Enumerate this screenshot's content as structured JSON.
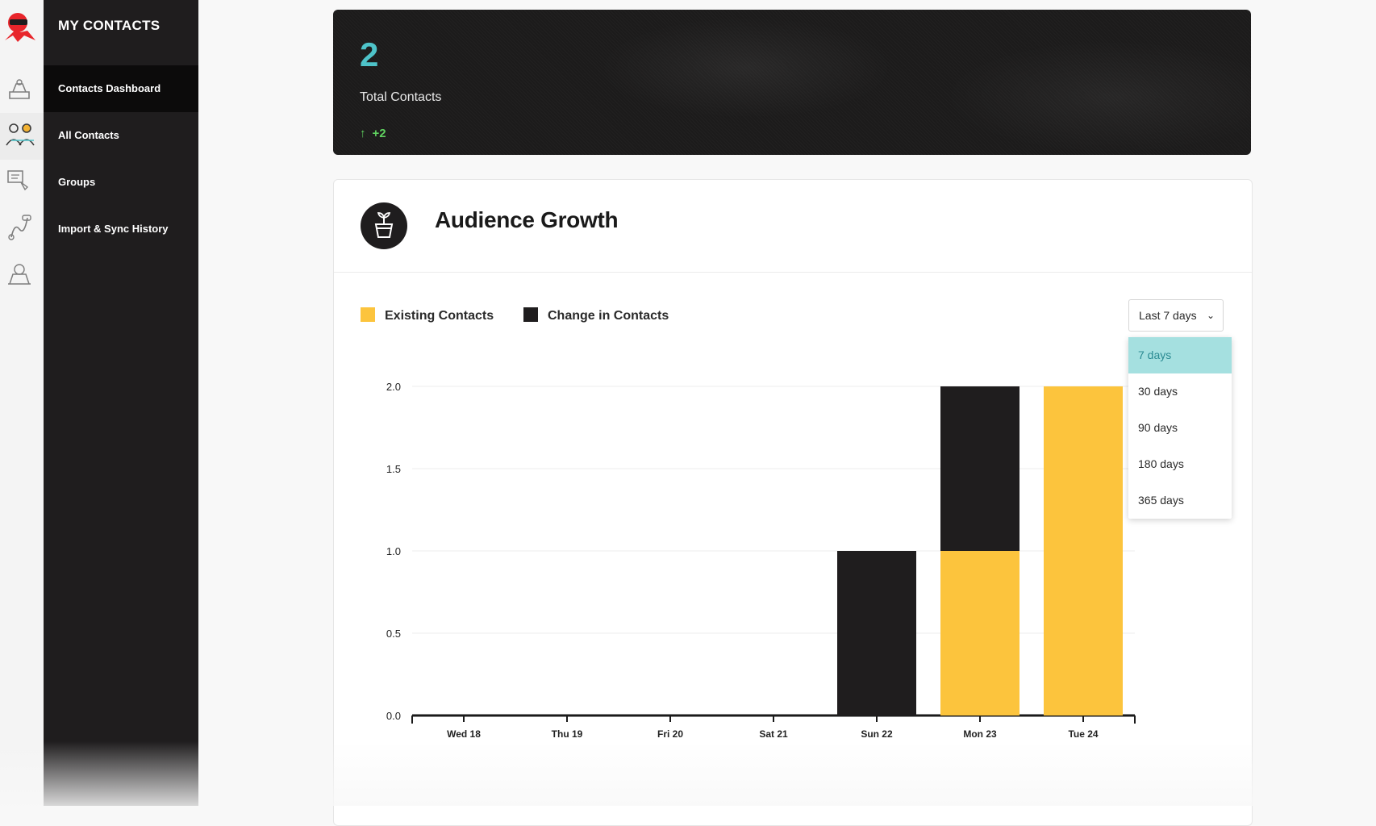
{
  "sidebar": {
    "title": "MY CONTACTS",
    "items": [
      {
        "label": "Contacts Dashboard",
        "active": true
      },
      {
        "label": "All Contacts",
        "active": false
      },
      {
        "label": "Groups",
        "active": false
      },
      {
        "label": "Import & Sync History",
        "active": false
      }
    ]
  },
  "rail": {
    "icons": [
      "logo-icon",
      "inbox-icon",
      "contacts-icon",
      "campaign-icon",
      "automation-icon",
      "learning-icon"
    ]
  },
  "stat": {
    "value": "2",
    "label": "Total Contacts",
    "delta": "+2",
    "delta_icon": "↑"
  },
  "growth": {
    "title": "Audience Growth",
    "legend": [
      {
        "label": "Existing Contacts",
        "color": "#fcc43d"
      },
      {
        "label": "Change in Contacts",
        "color": "#1f1d1e"
      }
    ],
    "range": {
      "selected": "Last 7 days",
      "options": [
        "7 days",
        "30 days",
        "90 days",
        "180 days",
        "365 days"
      ],
      "highlighted": "7 days"
    }
  },
  "chart_data": {
    "type": "bar",
    "stacked": true,
    "categories": [
      "Wed 18",
      "Thu 19",
      "Fri 20",
      "Sat 21",
      "Sun 22",
      "Mon 23",
      "Tue 24"
    ],
    "series": [
      {
        "name": "Existing Contacts",
        "color": "#fcc43d",
        "values": [
          0,
          0,
          0,
          0,
          0,
          1,
          2
        ]
      },
      {
        "name": "Change in Contacts",
        "color": "#1f1d1e",
        "values": [
          0,
          0,
          0,
          0,
          1,
          1,
          0
        ]
      }
    ],
    "yticks": [
      "0.0",
      "0.5",
      "1.0",
      "1.5",
      "2.0"
    ],
    "ylim": [
      0,
      2
    ],
    "grid": true,
    "legend_position": "top-left"
  }
}
